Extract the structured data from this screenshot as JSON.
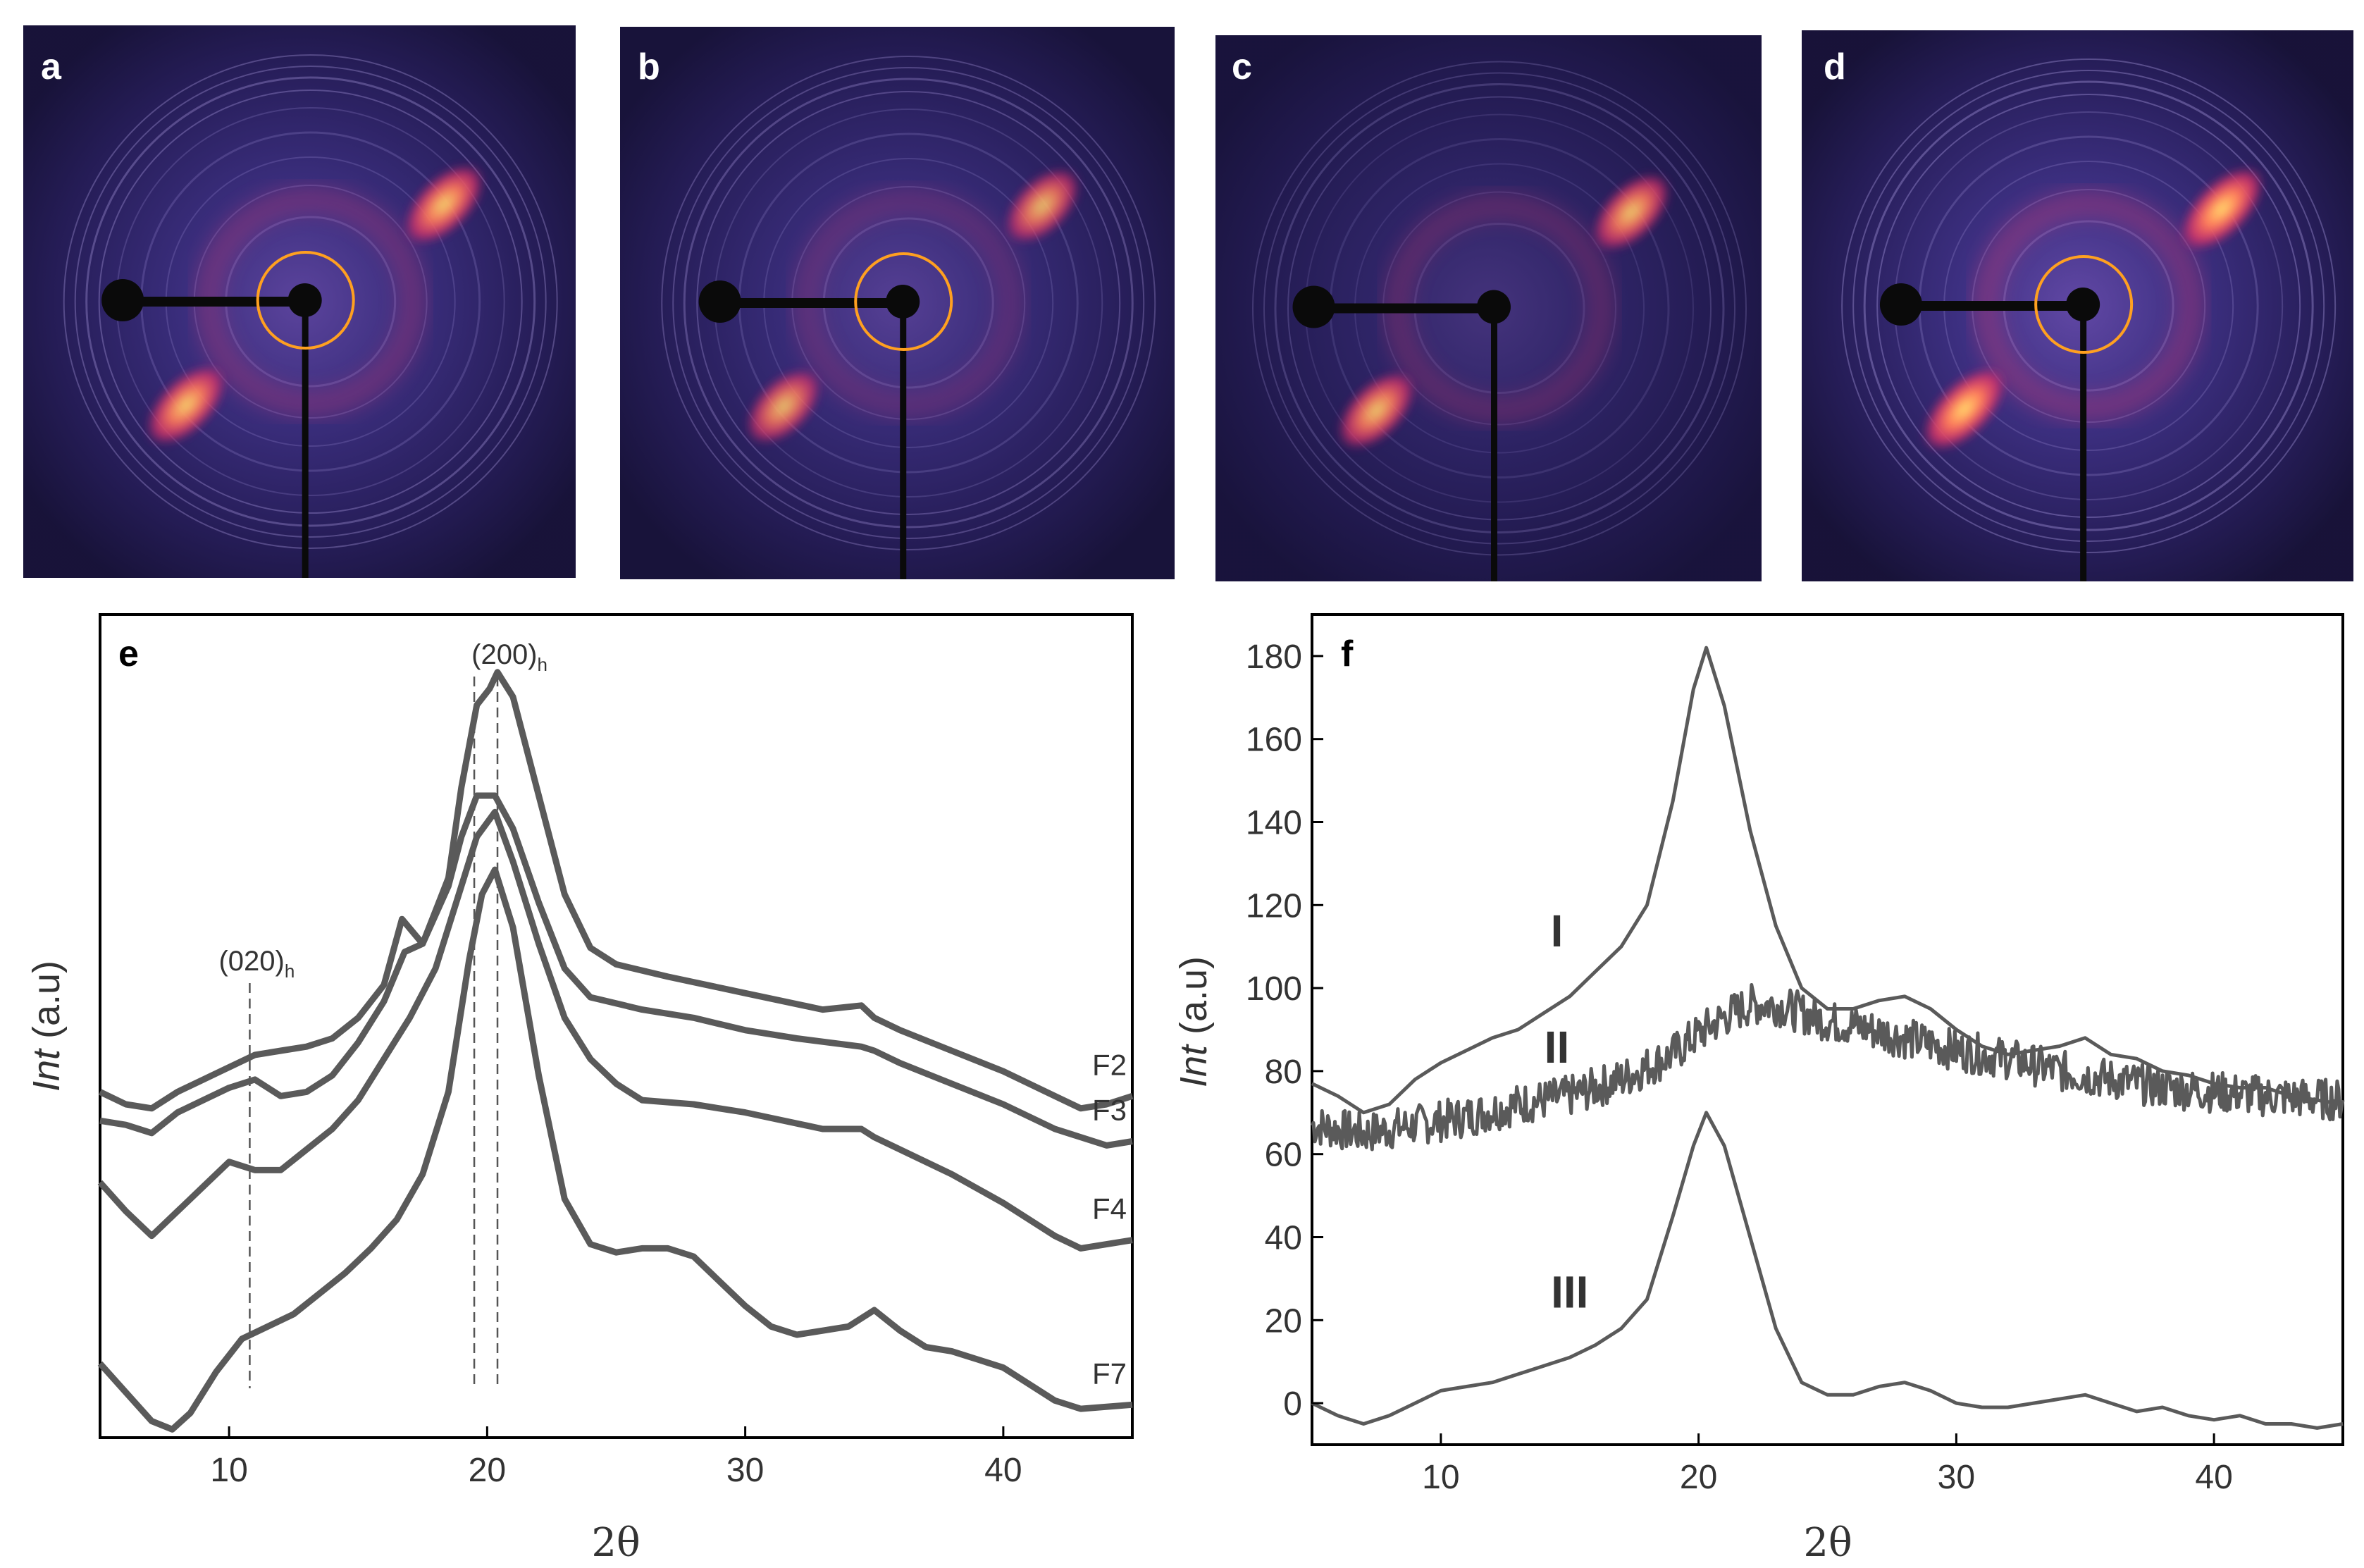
{
  "panels": {
    "a": "a",
    "b": "b",
    "c": "c",
    "d": "d",
    "e": "e",
    "f": "f"
  },
  "patterns": [
    {
      "label": "a",
      "arc_strength": 0.85,
      "ring_strength": 0.55,
      "orbit_ring": true
    },
    {
      "label": "b",
      "arc_strength": 0.65,
      "ring_strength": 0.45,
      "orbit_ring": true
    },
    {
      "label": "c",
      "arc_strength": 0.75,
      "ring_strength": 0.15,
      "orbit_ring": false
    },
    {
      "label": "d",
      "arc_strength": 1.0,
      "ring_strength": 0.65,
      "orbit_ring": true
    }
  ],
  "colors": {
    "pattern_background": "#1a1440",
    "pattern_halo": "#4a3a9a",
    "arc_color": "#ff3a6a",
    "arc_core": "#ffe36e",
    "orbit_ring": "#ffa020",
    "line": "#5a5a5a",
    "axis": "#000000",
    "guide": "#555555"
  },
  "chart_data": [
    {
      "panel": "e",
      "type": "line",
      "xlabel": "2θ",
      "ylabel_italic": "Int",
      "ylabel_rest": " (a.u)",
      "xlim": [
        5,
        45
      ],
      "ylim": [
        0,
        10
      ],
      "xticks": [
        10,
        20,
        30,
        40
      ],
      "yticks": [],
      "guides": [
        {
          "x": 10.8,
          "label": "(020)",
          "subscript": "h"
        },
        {
          "x": 19.5,
          "label": "(200)",
          "subscript": "h"
        },
        {
          "x": 20.4,
          "label": "",
          "subscript": ""
        }
      ],
      "series": [
        {
          "name": "F2",
          "points": [
            [
              5,
              4.2
            ],
            [
              6,
              4.05
            ],
            [
              7,
              4.0
            ],
            [
              8,
              4.2
            ],
            [
              9,
              4.35
            ],
            [
              10,
              4.5
            ],
            [
              11,
              4.65
            ],
            [
              12,
              4.7
            ],
            [
              13,
              4.75
            ],
            [
              14,
              4.85
            ],
            [
              15,
              5.1
            ],
            [
              16,
              5.5
            ],
            [
              16.7,
              6.3
            ],
            [
              17.5,
              6.0
            ],
            [
              18.5,
              6.8
            ],
            [
              19,
              7.9
            ],
            [
              19.6,
              8.9
            ],
            [
              20.1,
              9.1
            ],
            [
              20.4,
              9.3
            ],
            [
              21,
              9.0
            ],
            [
              22,
              7.8
            ],
            [
              23,
              6.6
            ],
            [
              24,
              5.95
            ],
            [
              25,
              5.75
            ],
            [
              27,
              5.6
            ],
            [
              30,
              5.4
            ],
            [
              33,
              5.2
            ],
            [
              34.5,
              5.25
            ],
            [
              35,
              5.1
            ],
            [
              36,
              4.95
            ],
            [
              38,
              4.7
            ],
            [
              40,
              4.45
            ],
            [
              42,
              4.15
            ],
            [
              43,
              4.0
            ],
            [
              44,
              4.05
            ],
            [
              45,
              4.15
            ]
          ]
        },
        {
          "name": "F3",
          "points": [
            [
              5,
              3.85
            ],
            [
              6,
              3.8
            ],
            [
              7,
              3.7
            ],
            [
              8,
              3.95
            ],
            [
              9,
              4.1
            ],
            [
              10,
              4.25
            ],
            [
              11,
              4.35
            ],
            [
              12,
              4.15
            ],
            [
              13,
              4.2
            ],
            [
              14,
              4.4
            ],
            [
              15,
              4.8
            ],
            [
              16,
              5.3
            ],
            [
              16.8,
              5.9
            ],
            [
              17.5,
              6.0
            ],
            [
              18.5,
              6.7
            ],
            [
              19,
              7.3
            ],
            [
              19.6,
              7.8
            ],
            [
              20.3,
              7.8
            ],
            [
              21,
              7.4
            ],
            [
              22,
              6.5
            ],
            [
              23,
              5.7
            ],
            [
              24,
              5.35
            ],
            [
              26,
              5.2
            ],
            [
              28,
              5.1
            ],
            [
              30,
              4.95
            ],
            [
              32,
              4.85
            ],
            [
              34.5,
              4.75
            ],
            [
              35,
              4.7
            ],
            [
              36,
              4.55
            ],
            [
              38,
              4.3
            ],
            [
              40,
              4.05
            ],
            [
              42,
              3.75
            ],
            [
              44,
              3.55
            ],
            [
              45,
              3.6
            ]
          ]
        },
        {
          "name": "F4",
          "points": [
            [
              5,
              3.1
            ],
            [
              6,
              2.75
            ],
            [
              7,
              2.45
            ],
            [
              8,
              2.75
            ],
            [
              9,
              3.05
            ],
            [
              10,
              3.35
            ],
            [
              11,
              3.25
            ],
            [
              12,
              3.25
            ],
            [
              13,
              3.5
            ],
            [
              14,
              3.75
            ],
            [
              15,
              4.1
            ],
            [
              16,
              4.6
            ],
            [
              17,
              5.1
            ],
            [
              18,
              5.7
            ],
            [
              19,
              6.7
            ],
            [
              19.6,
              7.3
            ],
            [
              20.3,
              7.6
            ],
            [
              21,
              7.0
            ],
            [
              22,
              6.0
            ],
            [
              23,
              5.1
            ],
            [
              24,
              4.6
            ],
            [
              25,
              4.3
            ],
            [
              26,
              4.1
            ],
            [
              28,
              4.05
            ],
            [
              30,
              3.95
            ],
            [
              33,
              3.75
            ],
            [
              34.5,
              3.75
            ],
            [
              35,
              3.65
            ],
            [
              36,
              3.5
            ],
            [
              38,
              3.2
            ],
            [
              40,
              2.85
            ],
            [
              42,
              2.45
            ],
            [
              43,
              2.3
            ],
            [
              45,
              2.4
            ]
          ]
        },
        {
          "name": "F7",
          "points": [
            [
              5,
              0.9
            ],
            [
              6,
              0.55
            ],
            [
              7,
              0.2
            ],
            [
              7.8,
              0.1
            ],
            [
              8.5,
              0.3
            ],
            [
              9.5,
              0.8
            ],
            [
              10.5,
              1.2
            ],
            [
              11.5,
              1.35
            ],
            [
              12.5,
              1.5
            ],
            [
              13.5,
              1.75
            ],
            [
              14.5,
              2.0
            ],
            [
              15.5,
              2.3
            ],
            [
              16.5,
              2.65
            ],
            [
              17.5,
              3.2
            ],
            [
              18.5,
              4.2
            ],
            [
              19.3,
              5.8
            ],
            [
              19.8,
              6.6
            ],
            [
              20.3,
              6.9
            ],
            [
              21,
              6.2
            ],
            [
              22,
              4.4
            ],
            [
              23,
              2.9
            ],
            [
              24,
              2.35
            ],
            [
              25,
              2.25
            ],
            [
              26,
              2.3
            ],
            [
              27,
              2.3
            ],
            [
              28,
              2.2
            ],
            [
              29,
              1.9
            ],
            [
              30,
              1.6
            ],
            [
              31,
              1.35
            ],
            [
              32,
              1.25
            ],
            [
              33,
              1.3
            ],
            [
              34,
              1.35
            ],
            [
              35,
              1.55
            ],
            [
              36,
              1.3
            ],
            [
              37,
              1.1
            ],
            [
              38,
              1.05
            ],
            [
              39,
              0.95
            ],
            [
              40,
              0.85
            ],
            [
              41,
              0.65
            ],
            [
              42,
              0.45
            ],
            [
              43,
              0.35
            ],
            [
              45,
              0.4
            ]
          ]
        }
      ]
    },
    {
      "panel": "f",
      "type": "line",
      "xlabel": "2θ",
      "ylabel_italic": "Int",
      "ylabel_rest": " (a.u)",
      "xlim": [
        5,
        45
      ],
      "ylim": [
        -10,
        190
      ],
      "xticks": [
        10,
        20,
        30,
        40
      ],
      "yticks": [
        0,
        20,
        40,
        60,
        80,
        100,
        120,
        140,
        160,
        180
      ],
      "series_labels": [
        {
          "text": "I",
          "x": 14.5,
          "y": 110
        },
        {
          "text": "II",
          "x": 14.5,
          "y": 82
        },
        {
          "text": "III",
          "x": 15.0,
          "y": 23
        }
      ],
      "series": [
        {
          "name": "I",
          "noise": 0,
          "points": [
            [
              5,
              77
            ],
            [
              6,
              74
            ],
            [
              7,
              70
            ],
            [
              8,
              72
            ],
            [
              9,
              78
            ],
            [
              10,
              82
            ],
            [
              11,
              85
            ],
            [
              12,
              88
            ],
            [
              13,
              90
            ],
            [
              14,
              94
            ],
            [
              15,
              98
            ],
            [
              16,
              104
            ],
            [
              17,
              110
            ],
            [
              18,
              120
            ],
            [
              19,
              145
            ],
            [
              19.8,
              172
            ],
            [
              20.3,
              182
            ],
            [
              21,
              168
            ],
            [
              22,
              138
            ],
            [
              23,
              115
            ],
            [
              24,
              100
            ],
            [
              25,
              95
            ],
            [
              26,
              95
            ],
            [
              27,
              97
            ],
            [
              28,
              98
            ],
            [
              29,
              95
            ],
            [
              30,
              90
            ],
            [
              31,
              86
            ],
            [
              32,
              84
            ],
            [
              33,
              85
            ],
            [
              34,
              86
            ],
            [
              35,
              88
            ],
            [
              36,
              84
            ],
            [
              37,
              83
            ],
            [
              38,
              80
            ],
            [
              39,
              79
            ],
            [
              40,
              77
            ],
            [
              41,
              76
            ],
            [
              42,
              76
            ],
            [
              43,
              74
            ],
            [
              44,
              73
            ],
            [
              45,
              72
            ]
          ]
        },
        {
          "name": "II",
          "noise": 5,
          "points": [
            [
              5,
              67
            ],
            [
              7,
              65
            ],
            [
              9,
              67
            ],
            [
              11,
              69
            ],
            [
              13,
              72
            ],
            [
              15,
              74
            ],
            [
              17,
              78
            ],
            [
              19,
              84
            ],
            [
              20,
              89
            ],
            [
              21,
              93
            ],
            [
              22,
              96
            ],
            [
              23,
              96
            ],
            [
              24,
              94
            ],
            [
              25,
              92
            ],
            [
              26,
              91
            ],
            [
              28,
              88
            ],
            [
              30,
              85
            ],
            [
              32,
              83
            ],
            [
              34,
              80
            ],
            [
              36,
              78
            ],
            [
              38,
              76
            ],
            [
              40,
              75
            ],
            [
              42,
              74
            ],
            [
              45,
              73
            ]
          ]
        },
        {
          "name": "III",
          "noise": 0,
          "points": [
            [
              5,
              0
            ],
            [
              6,
              -3
            ],
            [
              7,
              -5
            ],
            [
              8,
              -3
            ],
            [
              9,
              0
            ],
            [
              10,
              3
            ],
            [
              11,
              4
            ],
            [
              12,
              5
            ],
            [
              13,
              7
            ],
            [
              14,
              9
            ],
            [
              15,
              11
            ],
            [
              16,
              14
            ],
            [
              17,
              18
            ],
            [
              18,
              25
            ],
            [
              19,
              45
            ],
            [
              19.8,
              62
            ],
            [
              20.3,
              70
            ],
            [
              21,
              62
            ],
            [
              22,
              40
            ],
            [
              23,
              18
            ],
            [
              24,
              5
            ],
            [
              25,
              2
            ],
            [
              26,
              2
            ],
            [
              27,
              4
            ],
            [
              28,
              5
            ],
            [
              29,
              3
            ],
            [
              30,
              0
            ],
            [
              31,
              -1
            ],
            [
              32,
              -1
            ],
            [
              33,
              0
            ],
            [
              34,
              1
            ],
            [
              35,
              2
            ],
            [
              36,
              0
            ],
            [
              37,
              -2
            ],
            [
              38,
              -1
            ],
            [
              39,
              -3
            ],
            [
              40,
              -4
            ],
            [
              41,
              -3
            ],
            [
              42,
              -5
            ],
            [
              43,
              -5
            ],
            [
              44,
              -6
            ],
            [
              45,
              -5
            ]
          ]
        }
      ]
    }
  ]
}
